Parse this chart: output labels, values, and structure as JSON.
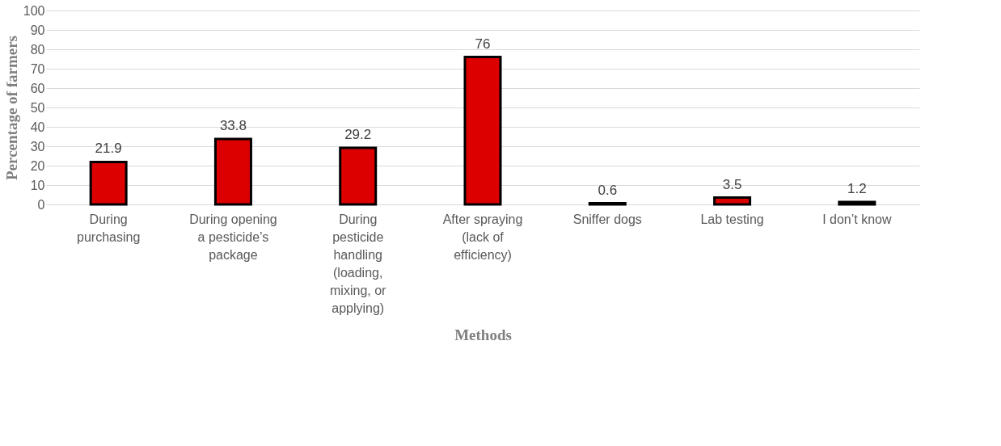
{
  "chart_data": {
    "type": "bar",
    "xlabel": "Methods",
    "ylabel": "Percentage of farmers",
    "categories": [
      "During purchasing",
      "During opening a pesticide’s package",
      "During pesticide handling (loading, mixing, or applying)",
      "After spraying (lack of efficiency)",
      "Sniffer dogs",
      "Lab testing",
      "I don’t know"
    ],
    "values": [
      21.9,
      33.8,
      29.2,
      76,
      0.6,
      3.5,
      1.2
    ],
    "color": "#dd0000",
    "ylim": [
      0,
      100
    ],
    "yticks": [
      0,
      10,
      20,
      30,
      40,
      50,
      60,
      70,
      80,
      90,
      100
    ],
    "grid": "y",
    "data_labels": true
  }
}
